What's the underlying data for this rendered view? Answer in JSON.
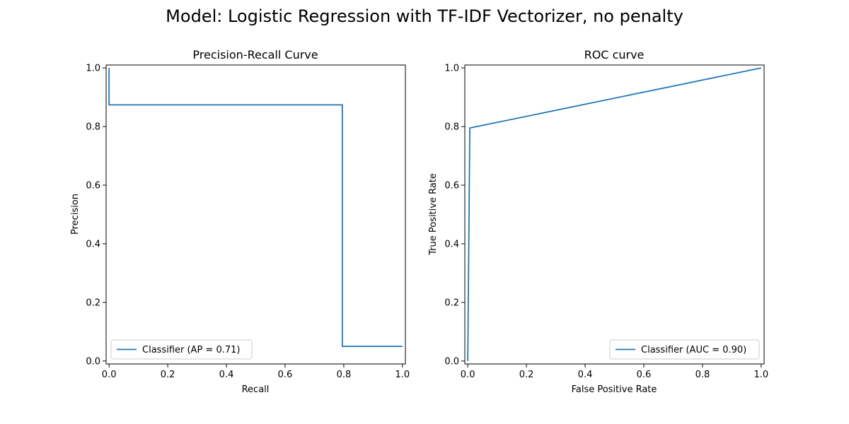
{
  "figure": {
    "suptitle": "Model: Logistic Regression with TF-IDF Vectorizer, no penalty"
  },
  "colors": {
    "series": "#1f77b4",
    "axes": "#000000",
    "legend_border": "#cccccc",
    "background": "#ffffff"
  },
  "chart_data": [
    {
      "type": "line",
      "drawstyle": "steps-post",
      "title": "Precision-Recall Curve",
      "xlabel": "Recall",
      "ylabel": "Precision",
      "xlim": [
        -0.01,
        1.01
      ],
      "ylim": [
        -0.01,
        1.01
      ],
      "xticks": [
        0.0,
        0.2,
        0.4,
        0.6,
        0.8,
        1.0
      ],
      "yticks": [
        0.0,
        0.2,
        0.4,
        0.6,
        0.8,
        1.0
      ],
      "xtick_labels": [
        "0.0",
        "0.2",
        "0.4",
        "0.6",
        "0.8",
        "1.0"
      ],
      "ytick_labels": [
        "0.0",
        "0.2",
        "0.4",
        "0.6",
        "0.8",
        "1.0"
      ],
      "grid": false,
      "legend_position": "lower-left",
      "series": [
        {
          "name": "Classifier (AP = 0.71)",
          "color": "#1f77b4",
          "x": [
            0.0,
            0.0,
            0.795,
            0.795,
            1.0
          ],
          "y": [
            1.0,
            0.874,
            0.874,
            0.05,
            0.05
          ]
        }
      ]
    },
    {
      "type": "line",
      "title": "ROC curve",
      "xlabel": "False Positive Rate",
      "ylabel": "True Positive Rate",
      "xlim": [
        -0.01,
        1.01
      ],
      "ylim": [
        -0.01,
        1.01
      ],
      "xticks": [
        0.0,
        0.2,
        0.4,
        0.6,
        0.8,
        1.0
      ],
      "yticks": [
        0.0,
        0.2,
        0.4,
        0.6,
        0.8,
        1.0
      ],
      "xtick_labels": [
        "0.0",
        "0.2",
        "0.4",
        "0.6",
        "0.8",
        "1.0"
      ],
      "ytick_labels": [
        "0.0",
        "0.2",
        "0.4",
        "0.6",
        "0.8",
        "1.0"
      ],
      "grid": false,
      "legend_position": "lower-right",
      "series": [
        {
          "name": "Classifier (AUC = 0.90)",
          "color": "#1f77b4",
          "x": [
            0.0,
            0.007,
            1.0
          ],
          "y": [
            0.0,
            0.795,
            1.0
          ]
        }
      ]
    }
  ]
}
